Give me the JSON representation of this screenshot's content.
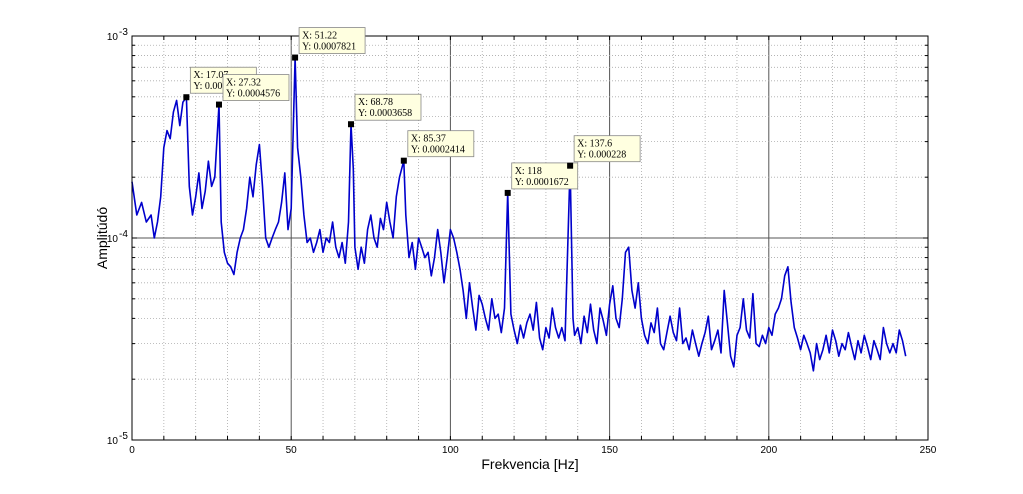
{
  "chart_data": {
    "type": "line",
    "xlabel": "Frekvencia [Hz]",
    "ylabel": "Amplitúdó",
    "xlim": [
      0,
      250
    ],
    "ylim": [
      1e-05,
      0.001
    ],
    "yscale": "log",
    "x_ticks": [
      0,
      50,
      100,
      150,
      200,
      250
    ],
    "x_tick_labels": [
      "0",
      "50",
      "100",
      "150",
      "200",
      "250"
    ],
    "y_ticks": [
      {
        "base": "10",
        "exp": "-5",
        "value": 1e-05
      },
      {
        "base": "10",
        "exp": "-4",
        "value": 0.0001
      },
      {
        "base": "10",
        "exp": "-3",
        "value": 0.001
      }
    ],
    "grid": true,
    "line_color": "#0000cc",
    "series": [
      {
        "points": [
          [
            0.0,
            0.00019
          ],
          [
            1.5,
            0.00013
          ],
          [
            3,
            0.00015
          ],
          [
            4.5,
            0.00012
          ],
          [
            6,
            0.00013
          ],
          [
            7,
            0.0001
          ],
          [
            8,
            0.00012
          ],
          [
            9,
            0.00016
          ],
          [
            10,
            0.00028
          ],
          [
            11,
            0.00034
          ],
          [
            12,
            0.00031
          ],
          [
            13,
            0.00042
          ],
          [
            14,
            0.00048
          ],
          [
            15,
            0.00036
          ],
          [
            16,
            0.00047
          ],
          [
            17.07,
            0.0004976
          ],
          [
            18,
            0.00018
          ],
          [
            19,
            0.00013
          ],
          [
            20,
            0.00016
          ],
          [
            21,
            0.00021
          ],
          [
            22,
            0.00014
          ],
          [
            23,
            0.00017
          ],
          [
            24,
            0.00024
          ],
          [
            25,
            0.00018
          ],
          [
            26,
            0.0002
          ],
          [
            27.32,
            0.0004576
          ],
          [
            28,
            0.00012
          ],
          [
            29,
            8.5e-05
          ],
          [
            30,
            7.5e-05
          ],
          [
            31,
            7.2e-05
          ],
          [
            32,
            6.6e-05
          ],
          [
            33,
            8.5e-05
          ],
          [
            34,
            0.0001
          ],
          [
            35,
            0.00011
          ],
          [
            36,
            0.00014
          ],
          [
            37,
            0.0002
          ],
          [
            38,
            0.00016
          ],
          [
            39,
            0.00023
          ],
          [
            40,
            0.00029
          ],
          [
            41,
            0.00018
          ],
          [
            42,
            0.0001
          ],
          [
            43,
            9e-05
          ],
          [
            44,
            0.0001
          ],
          [
            45,
            0.00011
          ],
          [
            46,
            0.00012
          ],
          [
            47,
            0.00015
          ],
          [
            48,
            0.00021
          ],
          [
            49,
            0.00011
          ],
          [
            50,
            0.00014
          ],
          [
            51.22,
            0.0007821
          ],
          [
            52,
            0.00028
          ],
          [
            53,
            0.0002
          ],
          [
            54,
            0.00013
          ],
          [
            55,
            9.5e-05
          ],
          [
            56,
            0.0001
          ],
          [
            57,
            8.5e-05
          ],
          [
            58,
            9.5e-05
          ],
          [
            59,
            0.00011
          ],
          [
            60,
            8.5e-05
          ],
          [
            61,
            0.0001
          ],
          [
            62,
            9.5e-05
          ],
          [
            63,
            0.00012
          ],
          [
            64,
            9e-05
          ],
          [
            65,
            8e-05
          ],
          [
            66,
            9.5e-05
          ],
          [
            67,
            7.5e-05
          ],
          [
            68,
            0.00012
          ],
          [
            68.78,
            0.0003658
          ],
          [
            69.5,
            0.00022
          ],
          [
            70,
            9e-05
          ],
          [
            71,
            7e-05
          ],
          [
            72,
            9e-05
          ],
          [
            73,
            7.5e-05
          ],
          [
            74,
            0.00011
          ],
          [
            75,
            0.00013
          ],
          [
            76,
            0.0001
          ],
          [
            77,
            9e-05
          ],
          [
            78,
            0.000125
          ],
          [
            79,
            0.00011
          ],
          [
            80,
            0.00015
          ],
          [
            81,
            0.00012
          ],
          [
            82,
            0.0001
          ],
          [
            83,
            0.00016
          ],
          [
            84,
            0.0002
          ],
          [
            85.37,
            0.0002414
          ],
          [
            86,
            0.00013
          ],
          [
            87,
            8e-05
          ],
          [
            88,
            9.5e-05
          ],
          [
            89,
            7e-05
          ],
          [
            90,
            0.0001
          ],
          [
            91,
            9e-05
          ],
          [
            92,
            8e-05
          ],
          [
            93,
            8.5e-05
          ],
          [
            94,
            6.5e-05
          ],
          [
            95,
            8e-05
          ],
          [
            96,
            0.00011
          ],
          [
            97,
            8.5e-05
          ],
          [
            98,
            6e-05
          ],
          [
            99,
            8e-05
          ],
          [
            100,
            0.00011
          ],
          [
            101,
            0.0001
          ],
          [
            102,
            8.5e-05
          ],
          [
            103,
            7e-05
          ],
          [
            104,
            5.5e-05
          ],
          [
            105,
            4e-05
          ],
          [
            106,
            6e-05
          ],
          [
            107,
            4.5e-05
          ],
          [
            108,
            3.5e-05
          ],
          [
            109,
            5.2e-05
          ],
          [
            110,
            4.7e-05
          ],
          [
            111,
            4e-05
          ],
          [
            112,
            3.5e-05
          ],
          [
            113,
            5e-05
          ],
          [
            114,
            4e-05
          ],
          [
            115,
            4.2e-05
          ],
          [
            116,
            3.4e-05
          ],
          [
            117,
            4.5e-05
          ],
          [
            118,
            0.0001672
          ],
          [
            119,
            4.2e-05
          ],
          [
            120,
            3.5e-05
          ],
          [
            121,
            3e-05
          ],
          [
            122,
            3.7e-05
          ],
          [
            123,
            3.2e-05
          ],
          [
            124,
            3.8e-05
          ],
          [
            125,
            4.2e-05
          ],
          [
            126,
            3.5e-05
          ],
          [
            127,
            4.8e-05
          ],
          [
            128,
            3.2e-05
          ],
          [
            129,
            2.8e-05
          ],
          [
            130,
            3.6e-05
          ],
          [
            131,
            3.2e-05
          ],
          [
            132,
            4.5e-05
          ],
          [
            133,
            3.6e-05
          ],
          [
            134,
            3.2e-05
          ],
          [
            135,
            3.6e-05
          ],
          [
            136,
            3.1e-05
          ],
          [
            137.6,
            0.000228
          ],
          [
            138.5,
            4e-05
          ],
          [
            139,
            3.3e-05
          ],
          [
            140,
            3.6e-05
          ],
          [
            141,
            3e-05
          ],
          [
            142,
            4.1e-05
          ],
          [
            143,
            3.4e-05
          ],
          [
            144,
            4.7e-05
          ],
          [
            145,
            3.5e-05
          ],
          [
            146,
            3e-05
          ],
          [
            147,
            4.5e-05
          ],
          [
            148,
            3.9e-05
          ],
          [
            149,
            3.3e-05
          ],
          [
            150,
            4.7e-05
          ],
          [
            151,
            5.8e-05
          ],
          [
            152,
            4e-05
          ],
          [
            153,
            3.6e-05
          ],
          [
            154,
            5e-05
          ],
          [
            155,
            8.5e-05
          ],
          [
            156,
            9e-05
          ],
          [
            157,
            5.5e-05
          ],
          [
            158,
            4.5e-05
          ],
          [
            159,
            6e-05
          ],
          [
            160,
            4e-05
          ],
          [
            161,
            3.3e-05
          ],
          [
            162,
            3e-05
          ],
          [
            163,
            3.8e-05
          ],
          [
            164,
            3.4e-05
          ],
          [
            165,
            4.5e-05
          ],
          [
            166,
            3e-05
          ],
          [
            167,
            2.8e-05
          ],
          [
            168,
            3.4e-05
          ],
          [
            169,
            4.1e-05
          ],
          [
            170,
            3.4e-05
          ],
          [
            171,
            3.1e-05
          ],
          [
            172,
            4.5e-05
          ],
          [
            173,
            3e-05
          ],
          [
            174,
            3.2e-05
          ],
          [
            175,
            2.8e-05
          ],
          [
            176,
            3.5e-05
          ],
          [
            177,
            3e-05
          ],
          [
            178,
            2.6e-05
          ],
          [
            179,
            3e-05
          ],
          [
            180,
            3.4e-05
          ],
          [
            181,
            4.1e-05
          ],
          [
            182,
            2.8e-05
          ],
          [
            183,
            3.1e-05
          ],
          [
            184,
            3.5e-05
          ],
          [
            185,
            2.7e-05
          ],
          [
            186,
            5.5e-05
          ],
          [
            187,
            3.8e-05
          ],
          [
            188,
            2.6e-05
          ],
          [
            189,
            2.3e-05
          ],
          [
            190,
            3.3e-05
          ],
          [
            191,
            3.6e-05
          ],
          [
            192,
            5e-05
          ],
          [
            193,
            3.5e-05
          ],
          [
            194,
            3.2e-05
          ],
          [
            195,
            5.3e-05
          ],
          [
            196,
            3e-05
          ],
          [
            197,
            2.9e-05
          ],
          [
            198,
            3.3e-05
          ],
          [
            199,
            3e-05
          ],
          [
            200,
            3.6e-05
          ],
          [
            201,
            3.3e-05
          ],
          [
            202,
            4.2e-05
          ],
          [
            203,
            4.5e-05
          ],
          [
            204,
            5e-05
          ],
          [
            205,
            6.5e-05
          ],
          [
            206,
            7.2e-05
          ],
          [
            207,
            4.8e-05
          ],
          [
            208,
            3.6e-05
          ],
          [
            209,
            3.2e-05
          ],
          [
            210,
            2.8e-05
          ],
          [
            211,
            3.3e-05
          ],
          [
            212,
            3e-05
          ],
          [
            213,
            2.7e-05
          ],
          [
            214,
            2.2e-05
          ],
          [
            215,
            3e-05
          ],
          [
            216,
            2.5e-05
          ],
          [
            217,
            2.8e-05
          ],
          [
            218,
            3.3e-05
          ],
          [
            219,
            2.7e-05
          ],
          [
            220,
            3.5e-05
          ],
          [
            221,
            3.1e-05
          ],
          [
            222,
            2.6e-05
          ],
          [
            223,
            3e-05
          ],
          [
            224,
            2.8e-05
          ],
          [
            225,
            3.4e-05
          ],
          [
            226,
            2.9e-05
          ],
          [
            227,
            2.5e-05
          ],
          [
            228,
            3.1e-05
          ],
          [
            229,
            2.7e-05
          ],
          [
            230,
            3.3e-05
          ],
          [
            231,
            2.9e-05
          ],
          [
            232,
            2.5e-05
          ],
          [
            233,
            3.1e-05
          ],
          [
            234,
            2.8e-05
          ],
          [
            235,
            2.5e-05
          ],
          [
            236,
            3.6e-05
          ],
          [
            237,
            3e-05
          ],
          [
            238,
            2.7e-05
          ],
          [
            239,
            3e-05
          ],
          [
            240,
            2.7e-05
          ],
          [
            241,
            3.5e-05
          ],
          [
            242,
            3.1e-05
          ],
          [
            243,
            2.6e-05
          ]
        ]
      }
    ],
    "datatips": [
      {
        "x": 17.07,
        "y": 0.0004976,
        "x_text": "X: 17.07",
        "y_text": "Y: 0.0004976"
      },
      {
        "x": 27.32,
        "y": 0.0004576,
        "x_text": "X: 27.32",
        "y_text": "Y: 0.0004576"
      },
      {
        "x": 51.22,
        "y": 0.0007821,
        "x_text": "X: 51.22",
        "y_text": "Y: 0.0007821"
      },
      {
        "x": 68.78,
        "y": 0.0003658,
        "x_text": "X: 68.78",
        "y_text": "Y: 0.0003658"
      },
      {
        "x": 85.37,
        "y": 0.0002414,
        "x_text": "X: 85.37",
        "y_text": "Y: 0.0002414"
      },
      {
        "x": 118,
        "y": 0.0001672,
        "x_text": "X: 118",
        "y_text": "Y: 0.0001672"
      },
      {
        "x": 137.6,
        "y": 0.000228,
        "x_text": "X: 137.6",
        "y_text": "Y: 0.000228"
      }
    ],
    "datatip_bg": "#ffffe0"
  }
}
